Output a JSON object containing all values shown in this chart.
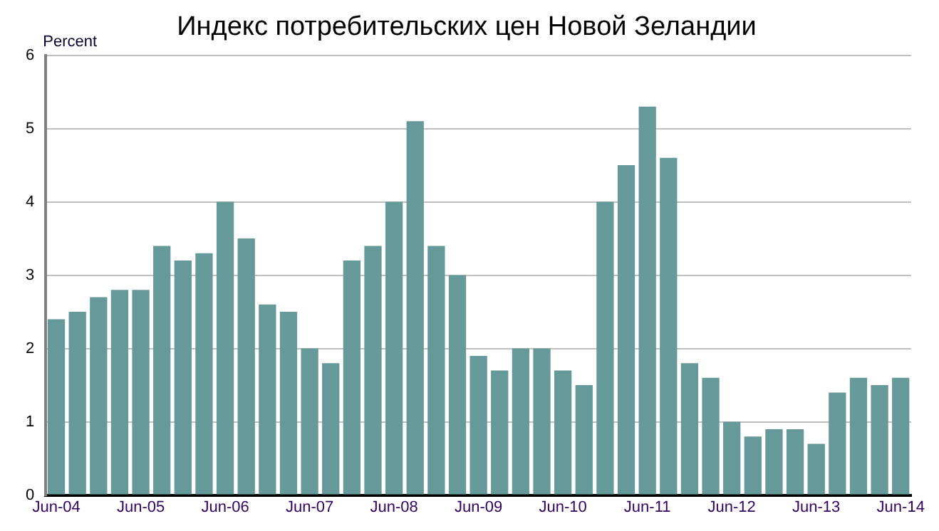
{
  "chart_data": {
    "type": "bar",
    "title": "Индекс потребительских цен Новой Зеландии",
    "ylabel": "Percent",
    "categories": [
      "Jun-04",
      null,
      null,
      null,
      "Jun-05",
      null,
      null,
      null,
      "Jun-06",
      null,
      null,
      null,
      "Jun-07",
      null,
      null,
      null,
      "Jun-08",
      null,
      null,
      null,
      "Jun-09",
      null,
      null,
      null,
      "Jun-10",
      null,
      null,
      null,
      "Jun-11",
      null,
      null,
      null,
      "Jun-12",
      null,
      null,
      null,
      "Jun-13",
      null,
      null,
      null,
      "Jun-14"
    ],
    "values": [
      2.4,
      2.5,
      2.7,
      2.8,
      2.8,
      3.4,
      3.2,
      3.3,
      4.0,
      3.5,
      2.6,
      2.5,
      2.0,
      1.8,
      3.2,
      3.4,
      4.0,
      5.1,
      3.4,
      3.0,
      1.9,
      1.7,
      2.0,
      2.0,
      1.7,
      1.5,
      4.0,
      4.5,
      5.3,
      4.6,
      1.8,
      1.6,
      1.0,
      0.8,
      0.9,
      0.9,
      0.7,
      1.4,
      1.6,
      1.5,
      1.6
    ],
    "color": "#669999",
    "ylim": [
      0,
      6
    ],
    "yticks": [
      0,
      1,
      2,
      3,
      4,
      5,
      6
    ],
    "grid": "y",
    "legend": false
  }
}
